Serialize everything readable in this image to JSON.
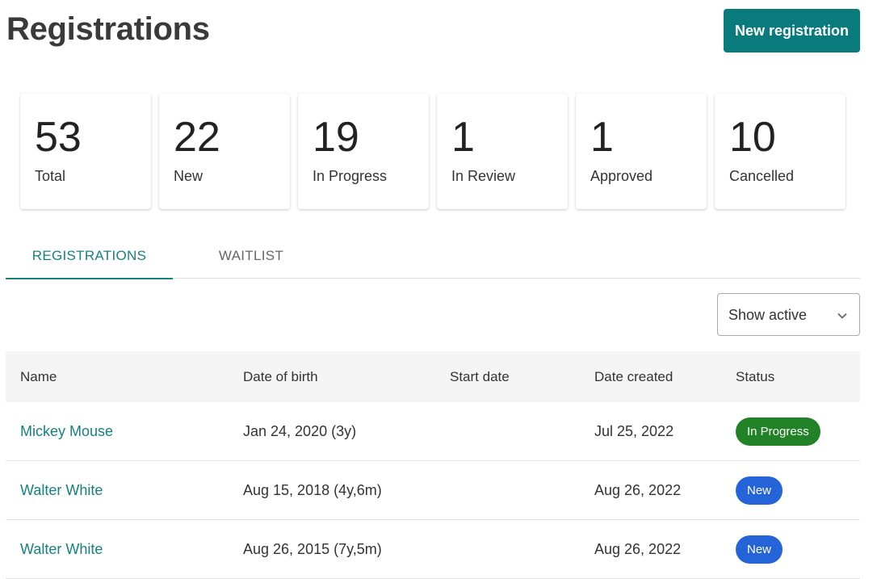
{
  "page": {
    "title": "Registrations",
    "new_button": "New registration"
  },
  "stats": [
    {
      "value": "53",
      "label": "Total"
    },
    {
      "value": "22",
      "label": "New"
    },
    {
      "value": "19",
      "label": "In Progress"
    },
    {
      "value": "1",
      "label": "In Review"
    },
    {
      "value": "1",
      "label": "Approved"
    },
    {
      "value": "10",
      "label": "Cancelled"
    }
  ],
  "tabs": [
    {
      "label": "REGISTRATIONS",
      "active": true
    },
    {
      "label": "WAITLIST",
      "active": false
    }
  ],
  "filter": {
    "selected": "Show active",
    "icon": "chevron-down-icon"
  },
  "table": {
    "columns": [
      "Name",
      "Date of birth",
      "Start date",
      "Date created",
      "Status"
    ],
    "rows": [
      {
        "name": "Mickey Mouse",
        "dob": "Jan 24, 2020 (3y)",
        "start": "",
        "created": "Jul 25, 2022",
        "status": "In Progress",
        "status_color": "#228228"
      },
      {
        "name": "Walter White",
        "dob": "Aug 15, 2018 (4y,6m)",
        "start": "",
        "created": "Aug 26, 2022",
        "status": "New",
        "status_color": "#2563d9"
      },
      {
        "name": "Walter White",
        "dob": "Aug 26, 2015 (7y,5m)",
        "start": "",
        "created": "Aug 26, 2022",
        "status": "New",
        "status_color": "#2563d9"
      }
    ]
  },
  "colors": {
    "accent": "#0a7b7d",
    "tab_active": "#17807f"
  }
}
